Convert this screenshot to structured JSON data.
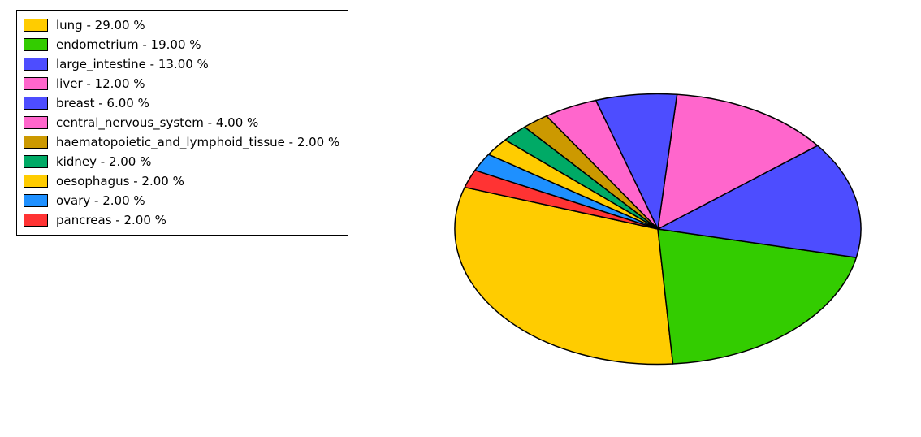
{
  "chart": {
    "type": "pie",
    "tilt_scale_y": 0.666,
    "stroke_color": "#000000",
    "stroke_width": 1.5,
    "background_color": "#ffffff",
    "legend": {
      "border_color": "#000000",
      "border_width": 1,
      "font_size": 15,
      "swatch_width": 28,
      "swatch_height": 14
    },
    "slices": [
      {
        "label": "lung",
        "pct": 29.0,
        "color": "#ffcc00"
      },
      {
        "label": "endometrium",
        "pct": 19.0,
        "color": "#33cc00"
      },
      {
        "label": "large_intestine",
        "pct": 13.0,
        "color": "#4d4dff"
      },
      {
        "label": "liver",
        "pct": 12.0,
        "color": "#ff66cc"
      },
      {
        "label": "breast",
        "pct": 6.0,
        "color": "#4d4dff"
      },
      {
        "label": "central_nervous_system",
        "pct": 4.0,
        "color": "#ff66cc"
      },
      {
        "label": "haematopoietic_and_lymphoid_tissue",
        "pct": 2.0,
        "color": "#cc9900"
      },
      {
        "label": "kidney",
        "pct": 2.0,
        "color": "#00aa66"
      },
      {
        "label": "oesophagus",
        "pct": 2.0,
        "color": "#ffcc00"
      },
      {
        "label": "ovary",
        "pct": 2.0,
        "color": "#1e90ff"
      },
      {
        "label": "pancreas",
        "pct": 2.0,
        "color": "#ff3333"
      }
    ]
  }
}
